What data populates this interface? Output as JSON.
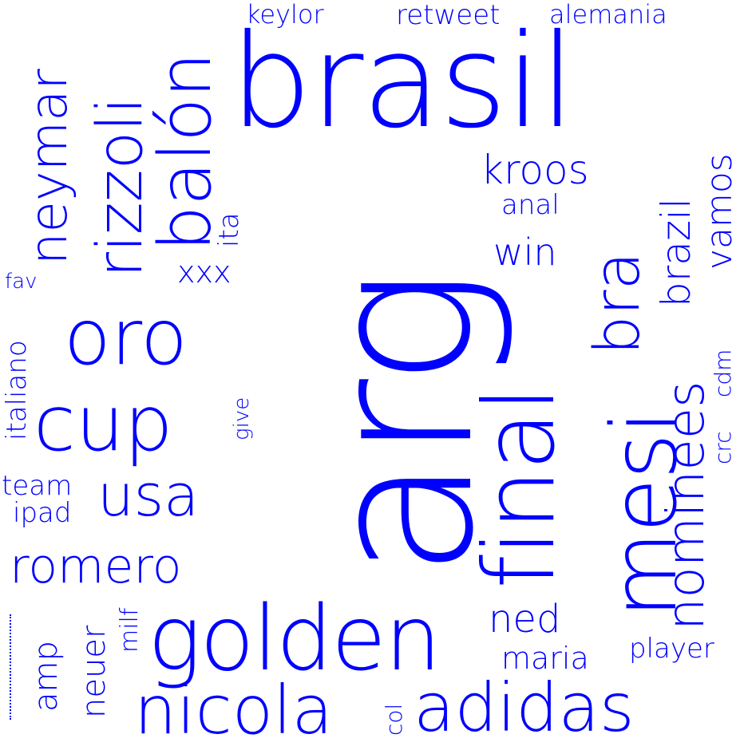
{
  "color": "#0000ff",
  "background": "#ffffff",
  "words": {
    "arg": "arg",
    "brasil": "brasil",
    "final": "final",
    "golden": "golden",
    "mesi": "mesi",
    "nicola": "nicola",
    "adidas": "adidas",
    "cup": "cup",
    "oro": "oro",
    "balon": "balón",
    "rizzoli": "rizzoli",
    "neymar": "neymar",
    "bra": "bra",
    "nominees": "nominees",
    "usa": "usa",
    "romero": "romero",
    "brazil": "brazil",
    "kroos": "kroos",
    "ned": "ned",
    "vamos": "vamos",
    "win": "win",
    "maria": "maria",
    "player": "player",
    "neuer": "neuer",
    "amp": "amp",
    "retweet": "retweet",
    "alemania": "alemania",
    "keylor": "keylor",
    "anal": "anal",
    "xxx": "xxx",
    "ita": "ita",
    "milf": "milf",
    "italiano": "italiano",
    "team": "team",
    "ipad": "ipad",
    "fav": "fav",
    "give": "give",
    "cdm": "cdm",
    "crc": "crc",
    "col": "col"
  }
}
